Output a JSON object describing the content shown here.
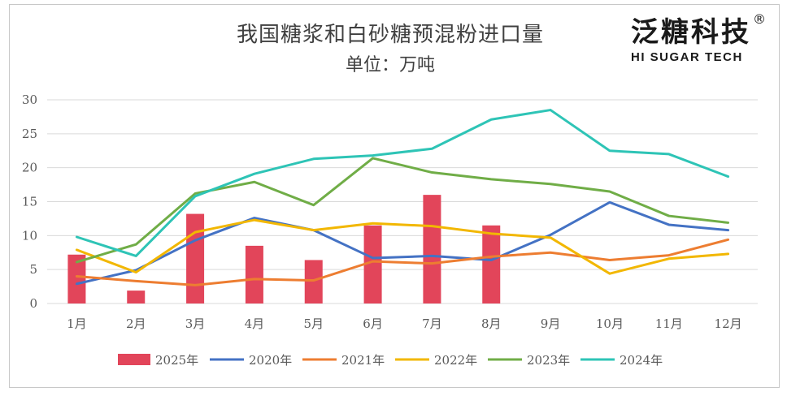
{
  "chart_data": {
    "type": "bar+line",
    "title": "我国糖浆和白砂糖预混粉进口量",
    "subtitle": "单位：万吨",
    "categories": [
      "1月",
      "2月",
      "3月",
      "4月",
      "5月",
      "6月",
      "7月",
      "8月",
      "9月",
      "10月",
      "11月",
      "12月"
    ],
    "ylim": [
      0,
      30
    ],
    "yticks": [
      0,
      5,
      10,
      15,
      20,
      25,
      30
    ],
    "grid": true,
    "legend_position": "bottom",
    "bars": {
      "name": "2025年",
      "color": "#e2455a",
      "values": [
        7.2,
        1.9,
        13.2,
        8.5,
        6.4,
        11.5,
        16.0,
        11.5,
        null,
        null,
        null,
        null
      ]
    },
    "series": [
      {
        "name": "2020年",
        "color": "#4472c4",
        "values": [
          2.9,
          4.9,
          9.3,
          12.6,
          10.8,
          6.7,
          7.0,
          6.4,
          10.1,
          14.9,
          11.6,
          10.8
        ]
      },
      {
        "name": "2021年",
        "color": "#ed7d31",
        "values": [
          4.0,
          3.3,
          2.7,
          3.6,
          3.4,
          6.2,
          5.9,
          6.9,
          7.5,
          6.4,
          7.1,
          9.4
        ]
      },
      {
        "name": "2022年",
        "color": "#f2b701",
        "values": [
          7.9,
          4.6,
          10.5,
          12.3,
          10.8,
          11.8,
          11.4,
          10.3,
          9.7,
          4.4,
          6.6,
          7.3
        ]
      },
      {
        "name": "2023年",
        "color": "#70ad47",
        "values": [
          6.1,
          8.7,
          16.2,
          17.9,
          14.5,
          21.4,
          19.3,
          18.3,
          17.6,
          16.5,
          12.9,
          11.9
        ]
      },
      {
        "name": "2024年",
        "color": "#2ec4b6",
        "values": [
          9.8,
          7.0,
          15.8,
          19.1,
          21.3,
          21.8,
          22.8,
          27.1,
          28.5,
          22.5,
          22.0,
          18.7
        ]
      }
    ]
  },
  "logo": {
    "cn": "泛糖科技",
    "reg": "®",
    "en": "HI SUGAR TECH"
  }
}
